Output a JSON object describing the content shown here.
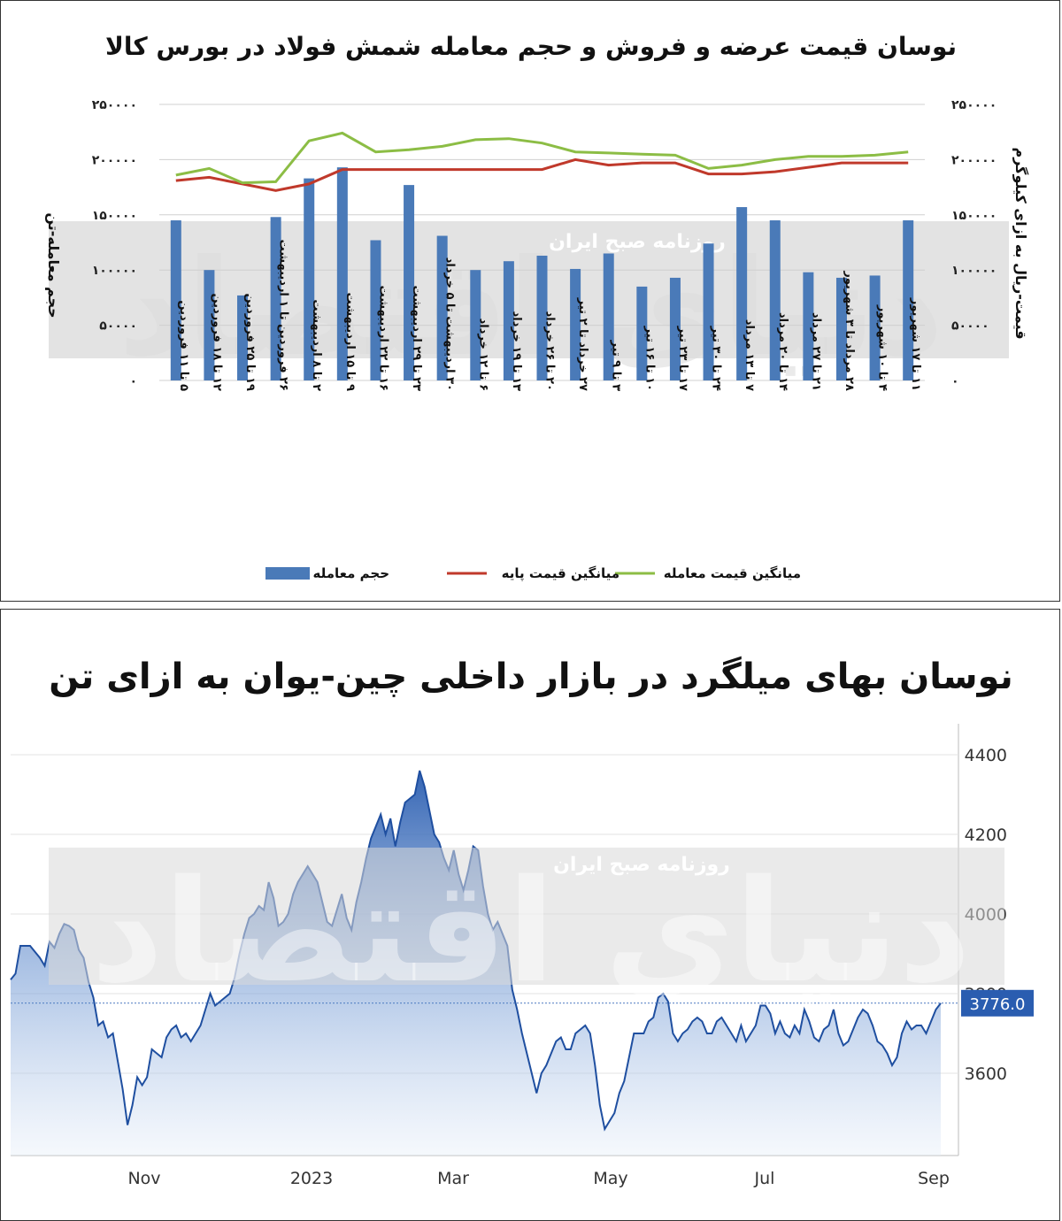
{
  "chart_data": [
    {
      "type": "bar",
      "title": "نوسان قیمت عرضه و فروش و حجم معامله شمش فولاد در بورس کالا",
      "ylabel_left": "حجم معامله-تن",
      "ylabel_right": "قیمت-ریال به ازای کیلوگرم",
      "ylim": [
        0,
        250000
      ],
      "yticks": [
        "۰",
        "۵۰۰۰۰",
        "۱۰۰۰۰۰",
        "۱۵۰۰۰۰",
        "۲۰۰۰۰۰",
        "۲۵۰۰۰۰"
      ],
      "categories": [
        "۵ تا ۱۱ فروردین",
        "۱۲ تا ۱۸ فروردین",
        "۱۹ تا ۲۵ فروردین",
        "۲۶ فروردین تا ۱ اردیبهشت",
        "۲ تا ۸ اردیبهشت",
        "۹ تا ۱۵ اردیبهشت",
        "۱۶ تا ۲۲ اردیبهشت",
        "۲۳ تا ۲۹ اردیبهشت",
        "۳۰ اردیبهشت تا ۵ خرداد",
        "۶ تا ۱۲ خرداد",
        "۱۳ تا ۱۹ خرداد",
        "۲۰ تا ۲۶ خرداد",
        "۲۷ خرداد تا ۲ تیر",
        "۳ تا ۹ تیر",
        "۱۰ تا ۱۶ تیر",
        "۱۷ تا ۲۳ تیر",
        "۲۴ تا ۳۰ تیر",
        "۷ تا ۱۳ مرداد",
        "۱۴ تا ۲۰ مرداد",
        "۲۱ تا ۲۷ مرداد",
        "۲۸ مرداد تا ۳ شهریور",
        "۴ تا ۱۰ شهریور",
        "۱۱ تا ۱۷ شهریور"
      ],
      "series": [
        {
          "name": "حجم معامله",
          "kind": "bar",
          "color": "#4a7ab8",
          "values": [
            145000,
            100000,
            77000,
            148000,
            183000,
            193000,
            127000,
            177000,
            131000,
            100000,
            108000,
            113000,
            101000,
            115000,
            85000,
            93000,
            124000,
            157000,
            145000,
            98000,
            93000,
            95000,
            145000
          ]
        },
        {
          "name": "میانگین قیمت پایه",
          "kind": "line",
          "color": "#c0392b",
          "values": [
            181000,
            184000,
            178000,
            172000,
            178000,
            191000,
            191000,
            191000,
            191000,
            191000,
            191000,
            191000,
            200000,
            195000,
            197000,
            197000,
            187000,
            187000,
            189000,
            193000,
            197000,
            197000,
            197000
          ]
        },
        {
          "name": "میانگین قیمت معامله",
          "kind": "line",
          "color": "#8cbd45",
          "values": [
            186000,
            192000,
            179000,
            180000,
            217000,
            224000,
            207000,
            209000,
            212000,
            218000,
            219000,
            215000,
            207000,
            206000,
            205000,
            204000,
            192000,
            195000,
            200000,
            203000,
            203000,
            204000,
            207000
          ]
        }
      ],
      "legend_position": "bottom"
    },
    {
      "type": "area",
      "title": "نوسان بهای میلگرد در بازار داخلی چین-یوان به ازای تن",
      "ylim": [
        3400,
        4400
      ],
      "yticks": [
        "3600",
        "3800",
        "4000",
        "4200",
        "4400"
      ],
      "xticks": [
        "Nov",
        "2023",
        "Mar",
        "May",
        "Jul",
        "Sep"
      ],
      "last_value_label": "3776.0",
      "series": [
        {
          "name": "",
          "values": [
            3835,
            3850,
            3920,
            3920,
            3920,
            3905,
            3890,
            3870,
            3930,
            3915,
            3950,
            3975,
            3970,
            3960,
            3910,
            3890,
            3830,
            3790,
            3720,
            3730,
            3690,
            3700,
            3630,
            3560,
            3470,
            3520,
            3590,
            3570,
            3590,
            3660,
            3650,
            3640,
            3690,
            3710,
            3720,
            3690,
            3700,
            3680,
            3700,
            3720,
            3760,
            3800,
            3770,
            3780,
            3790,
            3800,
            3840,
            3900,
            3950,
            3990,
            4000,
            4020,
            4010,
            4080,
            4040,
            3970,
            3980,
            4000,
            4050,
            4080,
            4100,
            4120,
            4100,
            4080,
            4030,
            3980,
            3970,
            4010,
            4050,
            3990,
            3960,
            4030,
            4080,
            4140,
            4190,
            4220,
            4250,
            4200,
            4240,
            4170,
            4230,
            4280,
            4290,
            4300,
            4360,
            4320,
            4260,
            4200,
            4180,
            4140,
            4110,
            4160,
            4100,
            4060,
            4110,
            4170,
            4160,
            4070,
            4000,
            3960,
            3980,
            3950,
            3920,
            3810,
            3760,
            3700,
            3650,
            3600,
            3550,
            3600,
            3620,
            3650,
            3680,
            3690,
            3660,
            3660,
            3700,
            3710,
            3720,
            3700,
            3620,
            3520,
            3460,
            3480,
            3500,
            3550,
            3580,
            3640,
            3700,
            3700,
            3700,
            3730,
            3740,
            3790,
            3800,
            3780,
            3700,
            3680,
            3700,
            3710,
            3730,
            3740,
            3730,
            3700,
            3700,
            3730,
            3740,
            3720,
            3700,
            3680,
            3720,
            3680,
            3700,
            3720,
            3770,
            3770,
            3750,
            3700,
            3730,
            3700,
            3690,
            3720,
            3700,
            3760,
            3730,
            3690,
            3680,
            3710,
            3720,
            3760,
            3700,
            3670,
            3680,
            3710,
            3740,
            3760,
            3750,
            3720,
            3680,
            3670,
            3650,
            3620,
            3640,
            3700,
            3730,
            3710,
            3720,
            3720,
            3700,
            3730,
            3760,
            3776
          ]
        }
      ],
      "axis_position": "right",
      "grid": true
    }
  ],
  "watermark": {
    "main": "دنیای اقتصاد",
    "banner": "روزنامه صبح ایران"
  }
}
